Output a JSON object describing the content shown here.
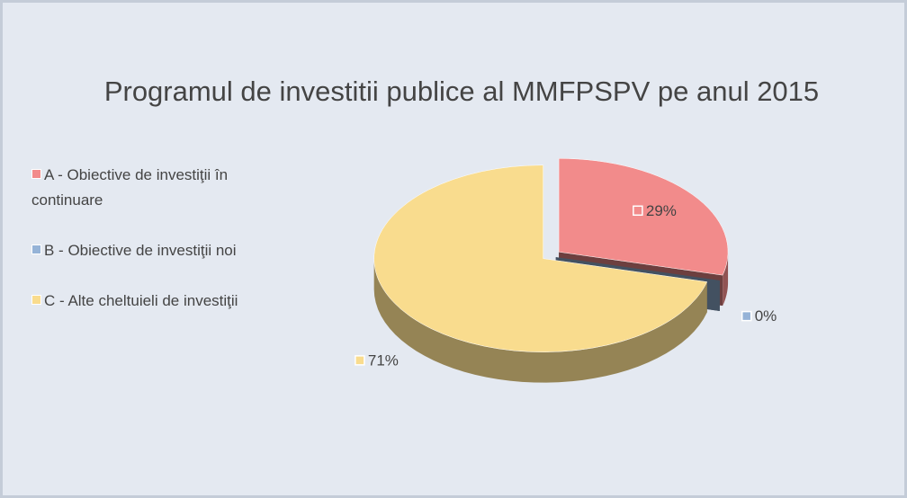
{
  "chart_data": {
    "type": "pie",
    "title": "Programul de investitii publice al MMFPSPV pe anul 2015",
    "categories": [
      "A - Obiective de investiţii în continuare",
      "B - Obiective de investiţii noi",
      "C - Alte cheltuieli de investiţii"
    ],
    "values": [
      29,
      0,
      71
    ],
    "value_labels": [
      "29%",
      "0%",
      "71%"
    ],
    "colors": [
      "#f28b8b",
      "#95b3d7",
      "#f9dc8e"
    ],
    "legend": "left"
  }
}
